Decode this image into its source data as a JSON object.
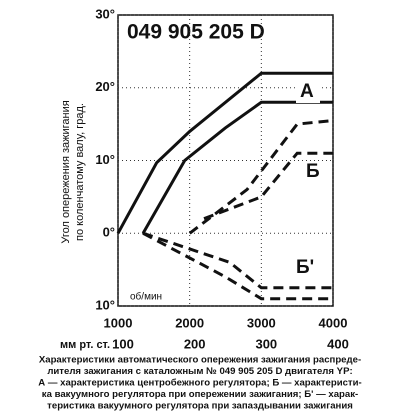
{
  "chart_data": {
    "type": "line",
    "title": "049 905 205 D",
    "ylabel": [
      "Угол опережения зажигания",
      "по коленчатому валу, град."
    ],
    "xlabel": "об/мин",
    "x2label": "мм рт. ст.",
    "xlim": [
      1000,
      4000
    ],
    "xticks": [
      1000,
      2000,
      3000,
      4000
    ],
    "x2lim": [
      100,
      400
    ],
    "x2ticks": [
      100,
      200,
      300,
      400
    ],
    "ylim": [
      -10,
      30
    ],
    "yticks": [
      {
        "value": -10,
        "label": "10°"
      },
      {
        "value": 0,
        "label": "0°"
      },
      {
        "value": 10,
        "label": "10°"
      },
      {
        "value": 20,
        "label": "20°"
      },
      {
        "value": 30,
        "label": "30°"
      }
    ],
    "grid": true,
    "color": "#111111",
    "series": [
      {
        "dash": false,
        "x": [
          1000,
          1540,
          2000,
          3000,
          4000
        ],
        "values": [
          0,
          9.7,
          14,
          22,
          22
        ]
      },
      {
        "dash": false,
        "x": [
          1350,
          1930,
          2500,
          3000,
          4000
        ],
        "values": [
          0,
          10,
          14.5,
          18,
          18
        ]
      },
      {
        "dash": true,
        "x": [
          2000,
          2800,
          3500,
          4000
        ],
        "values": [
          0,
          6,
          15,
          15.5
        ]
      },
      {
        "dash": true,
        "x": [
          2200,
          3000,
          3500,
          4000
        ],
        "values": [
          2,
          5,
          11,
          11
        ]
      },
      {
        "dash": true,
        "x": [
          1350,
          2560,
          3000,
          4000
        ],
        "values": [
          0,
          -4,
          -7.5,
          -7.5
        ]
      },
      {
        "dash": true,
        "x": [
          1350,
          2500,
          3000,
          4000
        ],
        "values": [
          0,
          -6,
          -9,
          -9
        ]
      }
    ],
    "annotations": [
      "А",
      "Б",
      "Б'"
    ],
    "caption": [
      "Характеристики автоматического опережения зажигания распреде-",
      "лителя зажигания с каталожным № 049 905 205 D двигателя YP:",
      "А — характеристика центробежного регулятора; Б — характеристи-",
      "ка вакуумного регулятора при опережении зажигания; Б' — харак-",
      "теристика вакуумного регулятора при запаздывании зажигания"
    ]
  }
}
